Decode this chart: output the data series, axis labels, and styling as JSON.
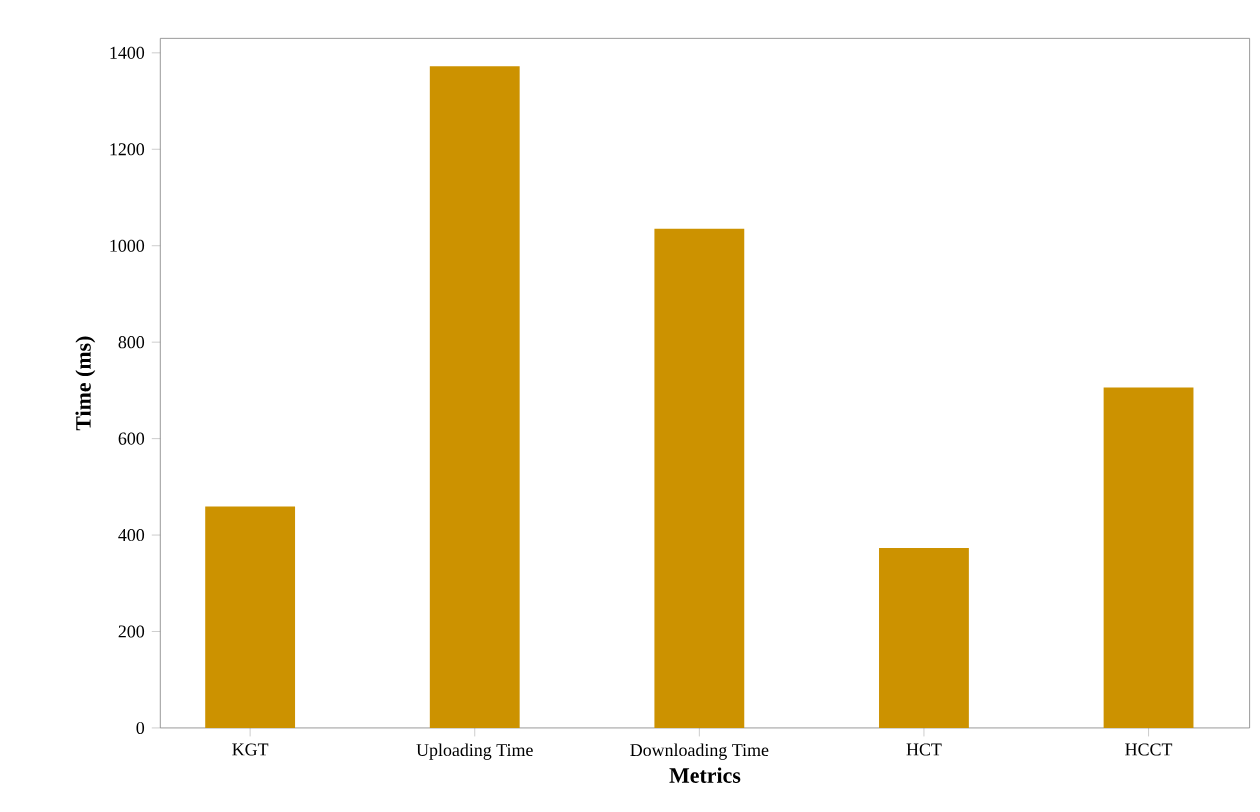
{
  "chart_data": {
    "type": "bar",
    "xlabel": "Metrics",
    "ylabel": "Time (ms)",
    "categories": [
      "KGT",
      "Uploading Time",
      "Downloading Time",
      "HCT",
      "HCCT"
    ],
    "values": [
      459,
      1372,
      1035,
      373,
      706
    ],
    "color": "#cc9200",
    "ylim": [
      0,
      1430
    ],
    "yticks": [
      0,
      200,
      400,
      600,
      800,
      1000,
      1200,
      1400
    ],
    "grid": false
  }
}
